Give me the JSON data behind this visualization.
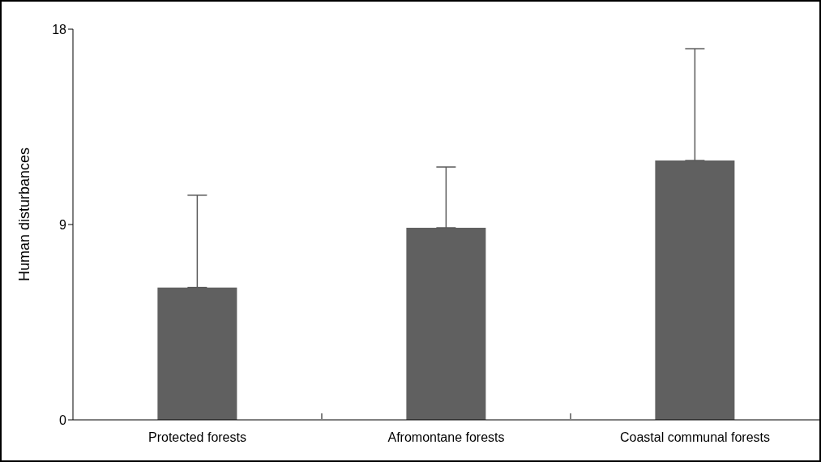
{
  "chart_data": {
    "type": "bar",
    "ylabel": "Human disturbances",
    "categories": [
      "Protected forests",
      "Afromontane forests",
      "Coastal communal forests"
    ],
    "values": [
      6.1,
      8.85,
      11.95
    ],
    "errors": [
      [
        6.1,
        10.35
      ],
      [
        8.85,
        11.65
      ],
      [
        11.95,
        17.1
      ]
    ],
    "color": "#606060",
    "ylim": [
      0,
      18
    ],
    "yticks": [
      0,
      9,
      18
    ],
    "grid": false
  }
}
